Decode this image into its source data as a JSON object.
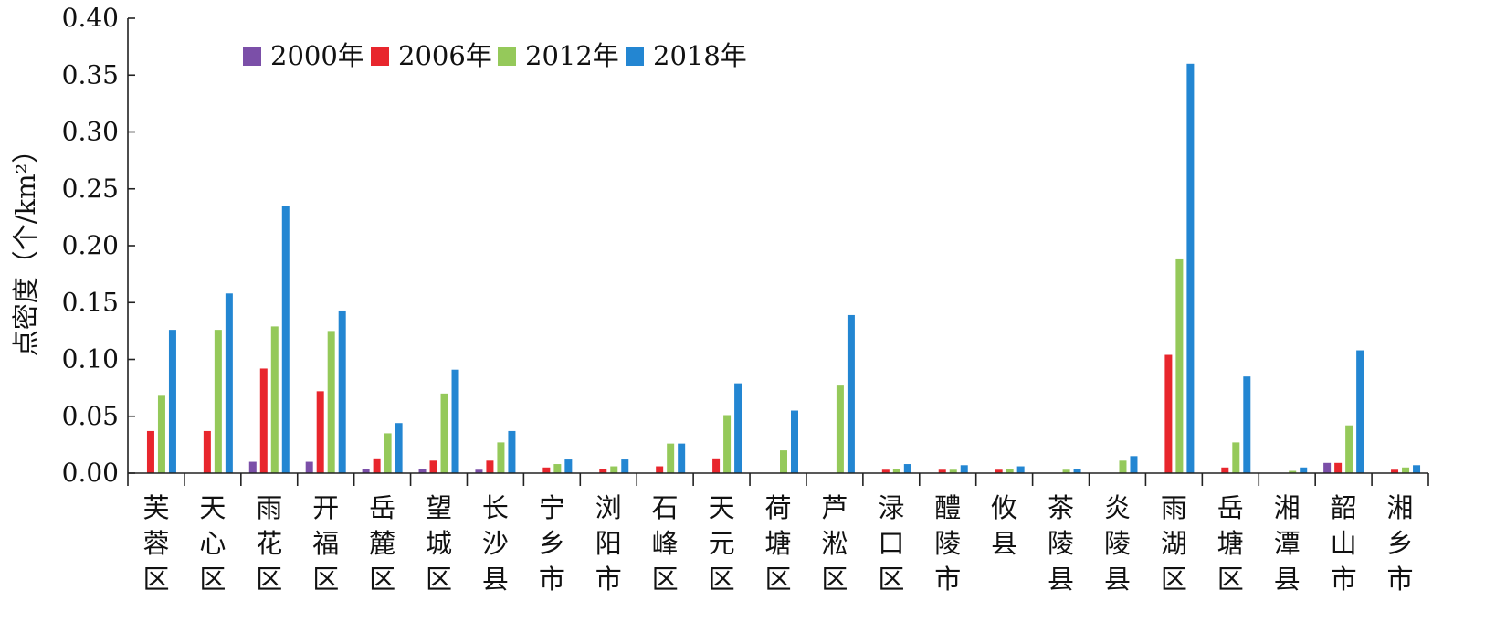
{
  "chart_data": {
    "type": "bar",
    "title": "",
    "xlabel": "",
    "ylabel": "点密度（个/km²）",
    "ylim": [
      0,
      0.4
    ],
    "yticks": [
      "0.00",
      "0.05",
      "0.10",
      "0.15",
      "0.20",
      "0.25",
      "0.30",
      "0.35",
      "0.40"
    ],
    "grid": false,
    "legend_position": "top-left",
    "categories": [
      "芙蓉区",
      "天心区",
      "雨花区",
      "开福区",
      "岳麓区",
      "望城区",
      "长沙县",
      "宁乡市",
      "浏阳市",
      "石峰区",
      "天元区",
      "荷塘区",
      "芦淞区",
      "渌口区",
      "醴陵市",
      "攸县",
      "茶陵县",
      "炎陵县",
      "雨湖区",
      "岳塘区",
      "湘潭县",
      "韶山市",
      "湘乡市"
    ],
    "series": [
      {
        "name": "2000年",
        "color": "#7b4fa8",
        "values": [
          0,
          0,
          0.01,
          0.01,
          0.004,
          0.004,
          0.003,
          0,
          0,
          0,
          0,
          0,
          0,
          0,
          0,
          0,
          0,
          0,
          0,
          0,
          0,
          0.009,
          0
        ]
      },
      {
        "name": "2006年",
        "color": "#e8262d",
        "values": [
          0.037,
          0.037,
          0.092,
          0.072,
          0.013,
          0.011,
          0.011,
          0.005,
          0.004,
          0.006,
          0.013,
          0,
          0,
          0.003,
          0.003,
          0.003,
          0,
          0,
          0.104,
          0.005,
          0,
          0.009,
          0.003
        ]
      },
      {
        "name": "2012年",
        "color": "#95c95a",
        "values": [
          0.068,
          0.126,
          0.129,
          0.125,
          0.035,
          0.07,
          0.027,
          0.008,
          0.006,
          0.026,
          0.051,
          0.02,
          0.077,
          0.004,
          0.003,
          0.004,
          0.003,
          0.011,
          0.188,
          0.027,
          0.002,
          0.042,
          0.005
        ]
      },
      {
        "name": "2018年",
        "color": "#2386d2",
        "values": [
          0.126,
          0.158,
          0.235,
          0.143,
          0.044,
          0.091,
          0.037,
          0.012,
          0.012,
          0.026,
          0.079,
          0.055,
          0.139,
          0.008,
          0.007,
          0.006,
          0.004,
          0.015,
          0.36,
          0.085,
          0.005,
          0.108,
          0.007
        ]
      }
    ]
  }
}
